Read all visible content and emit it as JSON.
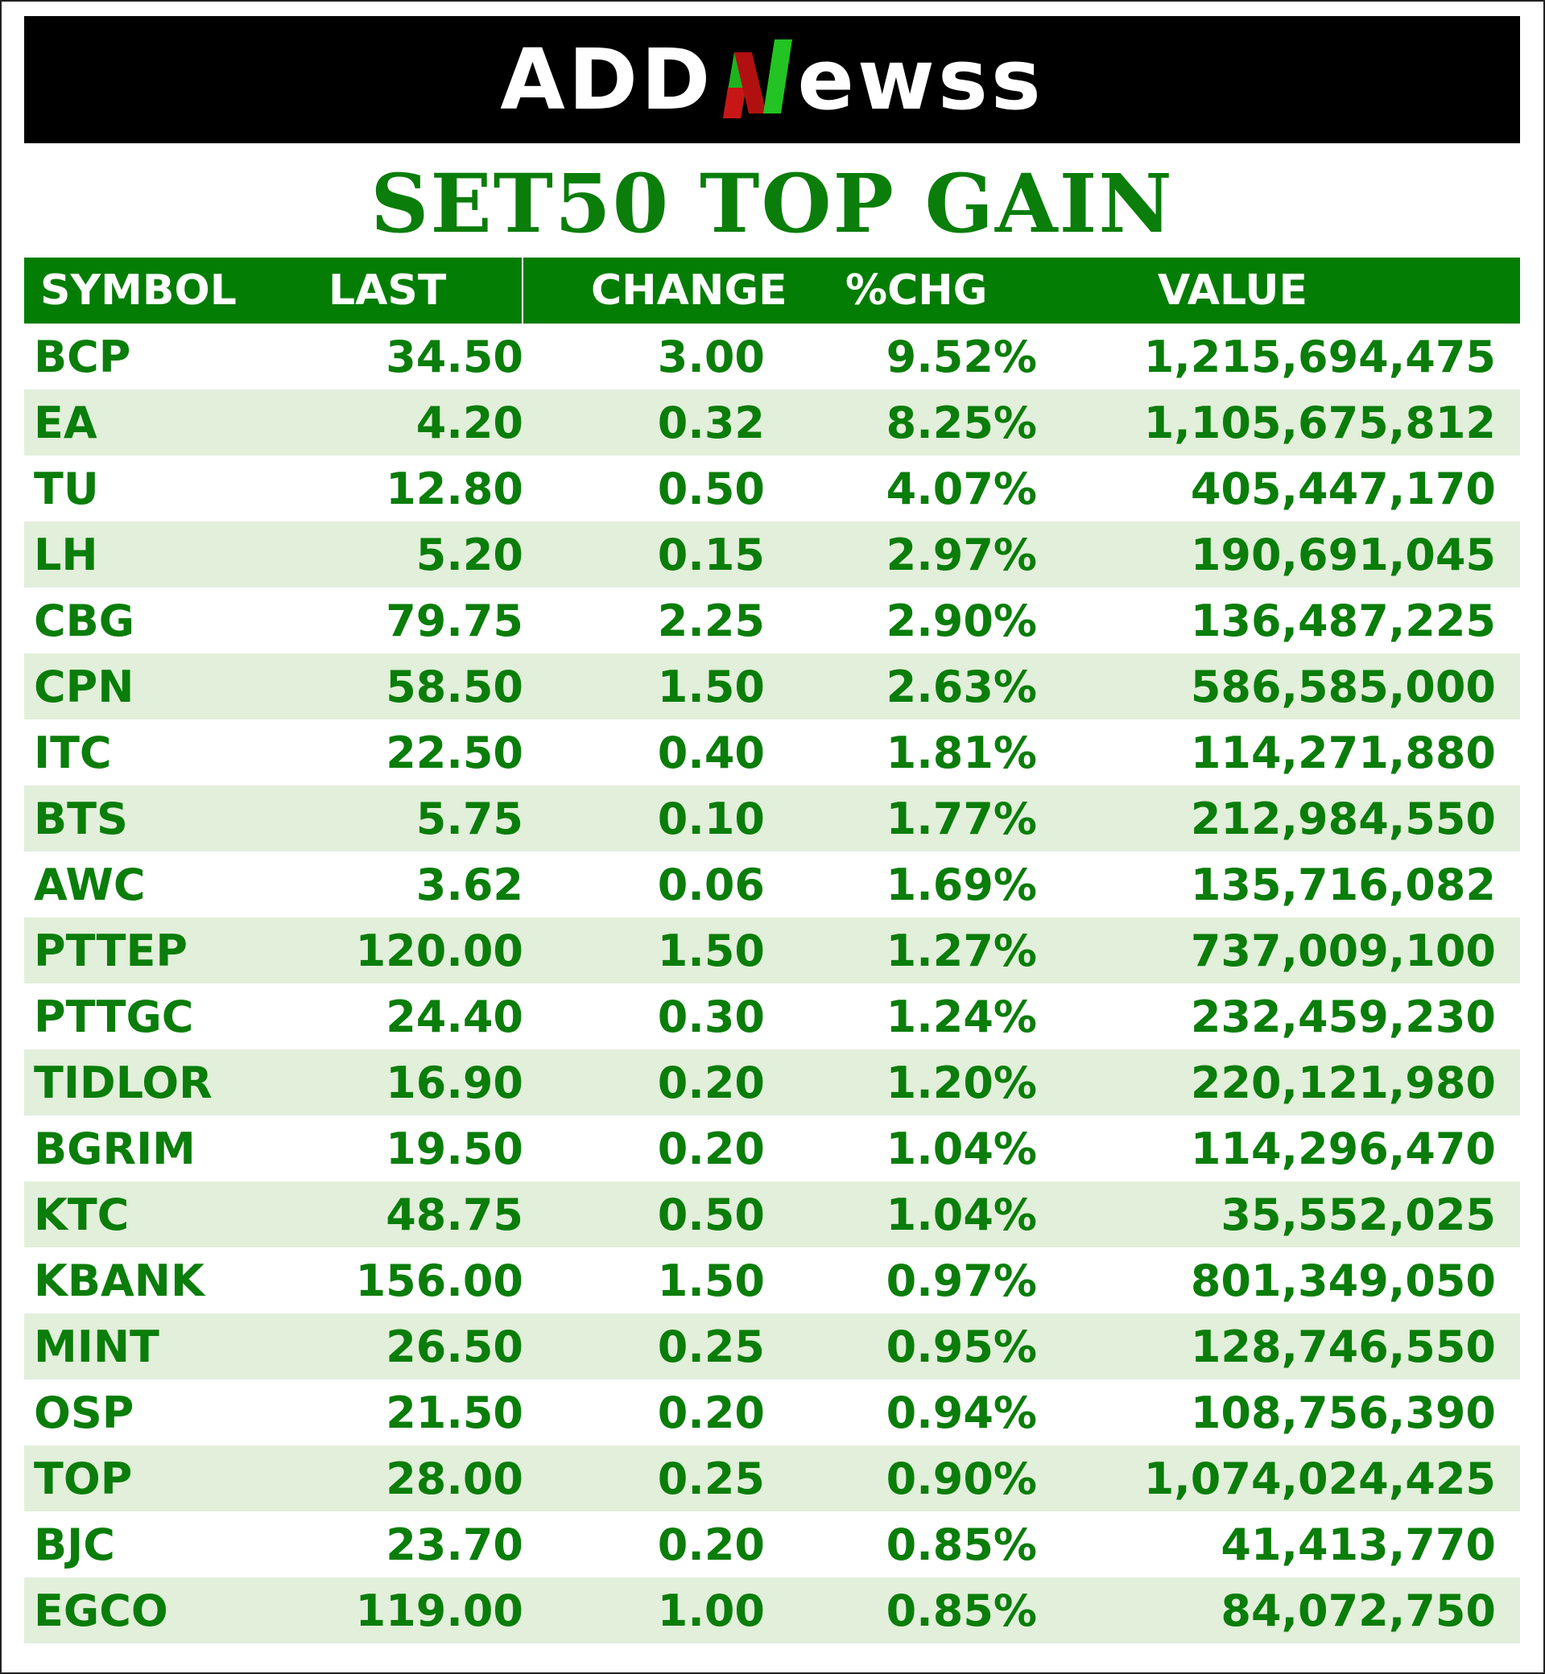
{
  "header": {
    "logo_left": "ADD",
    "logo_right": "ewss",
    "colors": {
      "green": "#1fb31f",
      "red": "#d01010",
      "banner_bg": "#000000"
    }
  },
  "title": "SET50 TOP GAIN",
  "table": {
    "columns": [
      "SYMBOL",
      "LAST",
      "CHANGE",
      "%CHG",
      "VALUE"
    ],
    "rows": [
      [
        "BCP",
        "34.50",
        "3.00",
        "9.52%",
        "1,215,694,475"
      ],
      [
        "EA",
        "4.20",
        "0.32",
        "8.25%",
        "1,105,675,812"
      ],
      [
        "TU",
        "12.80",
        "0.50",
        "4.07%",
        "405,447,170"
      ],
      [
        "LH",
        "5.20",
        "0.15",
        "2.97%",
        "190,691,045"
      ],
      [
        "CBG",
        "79.75",
        "2.25",
        "2.90%",
        "136,487,225"
      ],
      [
        "CPN",
        "58.50",
        "1.50",
        "2.63%",
        "586,585,000"
      ],
      [
        "ITC",
        "22.50",
        "0.40",
        "1.81%",
        "114,271,880"
      ],
      [
        "BTS",
        "5.75",
        "0.10",
        "1.77%",
        "212,984,550"
      ],
      [
        "AWC",
        "3.62",
        "0.06",
        "1.69%",
        "135,716,082"
      ],
      [
        "PTTEP",
        "120.00",
        "1.50",
        "1.27%",
        "737,009,100"
      ],
      [
        "PTTGC",
        "24.40",
        "0.30",
        "1.24%",
        "232,459,230"
      ],
      [
        "TIDLOR",
        "16.90",
        "0.20",
        "1.20%",
        "220,121,980"
      ],
      [
        "BGRIM",
        "19.50",
        "0.20",
        "1.04%",
        "114,296,470"
      ],
      [
        "KTC",
        "48.75",
        "0.50",
        "1.04%",
        "35,552,025"
      ],
      [
        "KBANK",
        "156.00",
        "1.50",
        "0.97%",
        "801,349,050"
      ],
      [
        "MINT",
        "26.50",
        "0.25",
        "0.95%",
        "128,746,550"
      ],
      [
        "OSP",
        "21.50",
        "0.20",
        "0.94%",
        "108,756,390"
      ],
      [
        "TOP",
        "28.00",
        "0.25",
        "0.90%",
        "1,074,024,425"
      ],
      [
        "BJC",
        "23.70",
        "0.20",
        "0.85%",
        "41,413,770"
      ],
      [
        "EGCO",
        "119.00",
        "1.00",
        "0.85%",
        "84,072,750"
      ]
    ]
  }
}
